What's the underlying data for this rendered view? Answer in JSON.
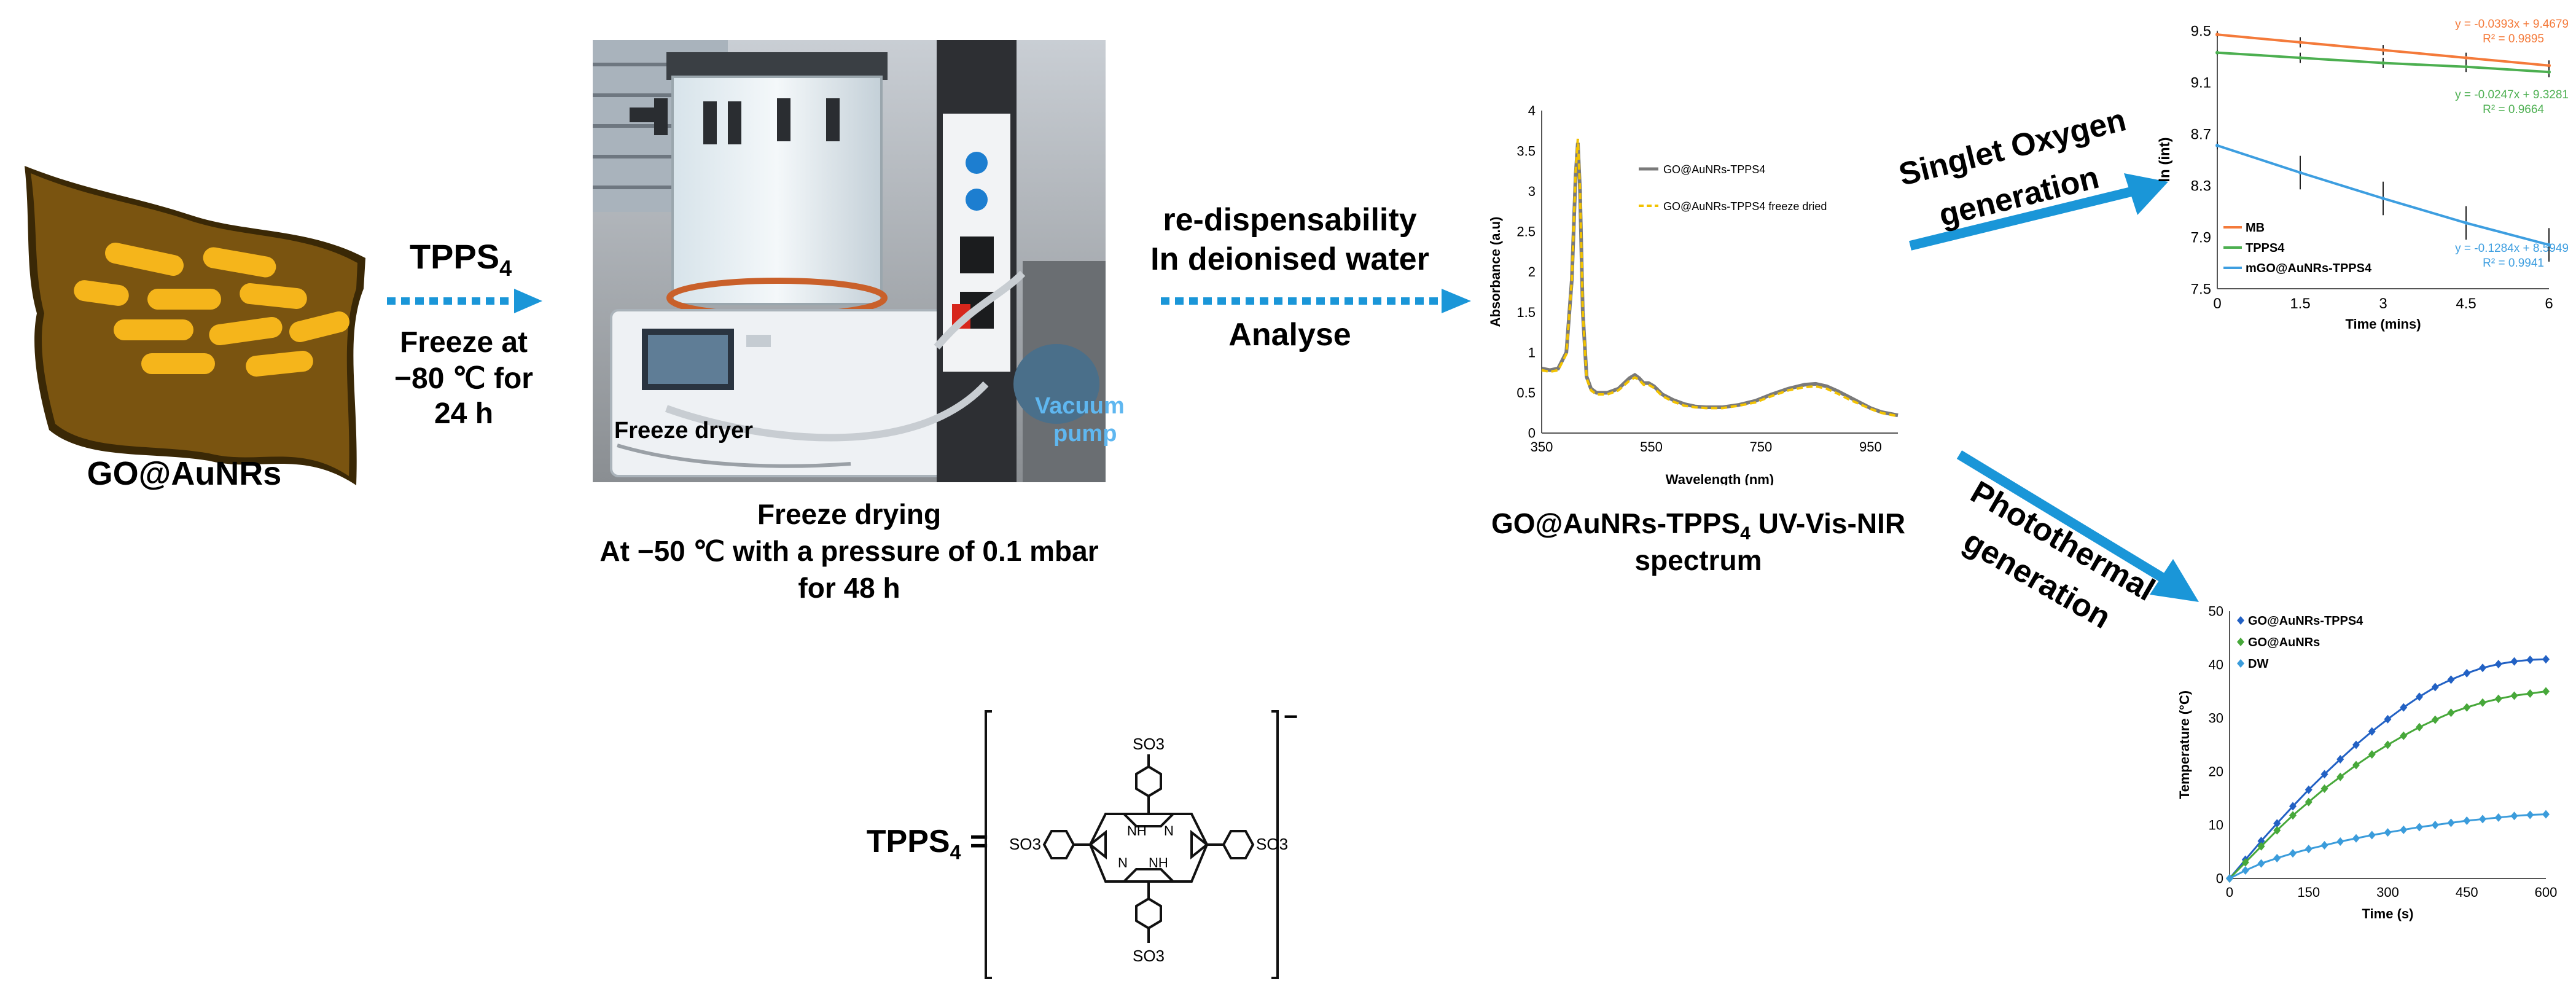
{
  "material": {
    "label": "GO@AuNRs"
  },
  "step1": {
    "reagent_main": "TPPS",
    "reagent_sub": "4",
    "line1": "Freeze at",
    "line2": "−80 ℃ for",
    "line3": "24 h"
  },
  "freeze_photo": {
    "dryer_label": "Freeze dryer",
    "pump_line1": "Vacuum",
    "pump_line2": "pump"
  },
  "freeze_drying": {
    "line1": "Freeze drying",
    "line2": "At −50 ℃ with a pressure of 0.1 mbar",
    "line3": "for 48 h"
  },
  "step2": {
    "line1": "re-dispensability",
    "line2": "In deionised water",
    "line3": "Analyse"
  },
  "spectrum_caption": {
    "pre": "GO@AuNRs-TPPS",
    "sub": "4",
    "post": " UV-Vis-NIR",
    "line2": "spectrum"
  },
  "branch_singlet": {
    "line1": "Singlet Oxygen",
    "line2": "generation"
  },
  "branch_photo": {
    "line1": "Photothermal",
    "line2": "generation"
  },
  "tpps_structure": {
    "lhs_main": "TPPS",
    "lhs_sub": "4",
    "eq": "=",
    "charge": "−",
    "so3_top": "SO3",
    "so3_bottom": "SO3",
    "so3_left": "SO3",
    "so3_right": "SO3",
    "nh_top": "NH",
    "n_top": "N",
    "n_bottom": "N",
    "nh_bottom": "NH"
  },
  "colors": {
    "arrow": "#1a96d8",
    "go_sheet": "#7a5410",
    "go_sheet_dark": "#3a2806",
    "rods": "#f5b51b",
    "nanorod_outline": "#e39b00",
    "uv_line": "#7a7a7a",
    "uv_dashed": "#f2c200",
    "mb": "#f47a3a",
    "tpps4_green": "#4caf50",
    "mgo_blue": "#3d9ee0",
    "pt_dark_blue": "#2261c4",
    "pt_green": "#47a83a",
    "pt_light_blue": "#3b9cdb"
  },
  "chart_data": [
    {
      "type": "line",
      "xlabel": "Wavelength (nm)",
      "ylabel": "Absorbance (a.u)",
      "xlim": [
        350,
        1000
      ],
      "ylim": [
        0,
        4
      ],
      "xticks": [
        "350",
        "550",
        "750",
        "950"
      ],
      "yticks": [
        "0",
        "0.5",
        "1",
        "1.5",
        "2",
        "2.5",
        "3",
        "3.5",
        "4"
      ],
      "legend_position": "top-right",
      "series": [
        {
          "name": "GO@AuNRs-TPPS4",
          "style": "solid",
          "x": [
            350,
            365,
            380,
            395,
            405,
            412,
            416,
            420,
            425,
            432,
            440,
            450,
            470,
            490,
            510,
            520,
            528,
            536,
            545,
            555,
            570,
            590,
            610,
            630,
            650,
            680,
            710,
            740,
            770,
            800,
            830,
            850,
            870,
            890,
            910,
            930,
            950,
            970,
            1000
          ],
          "y": [
            0.8,
            0.78,
            0.8,
            1.0,
            1.9,
            3.2,
            3.6,
            3.0,
            1.5,
            0.7,
            0.55,
            0.5,
            0.5,
            0.55,
            0.68,
            0.72,
            0.68,
            0.62,
            0.62,
            0.58,
            0.48,
            0.41,
            0.36,
            0.33,
            0.32,
            0.32,
            0.35,
            0.4,
            0.48,
            0.55,
            0.6,
            0.61,
            0.58,
            0.52,
            0.45,
            0.38,
            0.31,
            0.26,
            0.22
          ]
        },
        {
          "name": "GO@AuNRs-TPPS4 freeze dried",
          "style": "dashed",
          "x": [
            350,
            365,
            380,
            395,
            405,
            412,
            416,
            420,
            425,
            432,
            440,
            450,
            470,
            490,
            510,
            520,
            528,
            536,
            545,
            555,
            570,
            590,
            610,
            630,
            650,
            680,
            710,
            740,
            770,
            800,
            830,
            850,
            870,
            890,
            910,
            930,
            950,
            970,
            1000
          ],
          "y": [
            0.78,
            0.76,
            0.78,
            0.98,
            1.9,
            3.25,
            3.65,
            3.0,
            1.5,
            0.68,
            0.53,
            0.48,
            0.48,
            0.53,
            0.65,
            0.69,
            0.66,
            0.6,
            0.6,
            0.56,
            0.46,
            0.39,
            0.34,
            0.32,
            0.31,
            0.31,
            0.34,
            0.38,
            0.46,
            0.53,
            0.57,
            0.58,
            0.55,
            0.49,
            0.42,
            0.36,
            0.3,
            0.25,
            0.21
          ]
        }
      ]
    },
    {
      "type": "scatter",
      "xlabel": "Time (mins)",
      "ylabel": "ln (int)",
      "xlim": [
        0,
        6
      ],
      "ylim": [
        7.5,
        9.5
      ],
      "xticks": [
        "0",
        "1.5",
        "3",
        "4.5",
        "6"
      ],
      "yticks": [
        "7.5",
        "7.9",
        "8.3",
        "8.7",
        "9.1",
        "9.5"
      ],
      "legend_position": "bottom-left",
      "series": [
        {
          "name": "MB",
          "x": [
            0,
            1.5,
            3,
            4.5,
            6
          ],
          "y": [
            9.47,
            9.41,
            9.35,
            9.29,
            9.23
          ],
          "error": [
            0.02,
            0.04,
            0.04,
            0.04,
            0.04
          ],
          "equation": "y = -0.0393x + 9.4679",
          "r2": "R² = 0.9895"
        },
        {
          "name": "TPPS4",
          "x": [
            0,
            1.5,
            3,
            4.5,
            6
          ],
          "y": [
            9.33,
            9.29,
            9.25,
            9.22,
            9.18
          ],
          "error": [
            0.02,
            0.04,
            0.04,
            0.04,
            0.04
          ],
          "equation": "y = -0.0247x + 9.3281",
          "r2": "R² = 0.9664"
        },
        {
          "name": "mGO@AuNRs-TPPS4",
          "x": [
            0,
            1.5,
            3,
            4.5,
            6
          ],
          "y": [
            8.61,
            8.4,
            8.2,
            8.01,
            7.84
          ],
          "error": [
            0.03,
            0.13,
            0.13,
            0.13,
            0.13
          ],
          "equation": "y = -0.1284x + 8.5949",
          "r2": "R² = 0.9941"
        }
      ]
    },
    {
      "type": "line",
      "xlabel": "Time (s)",
      "ylabel": "Temperature (°C)",
      "xlim": [
        0,
        600
      ],
      "ylim": [
        0,
        50
      ],
      "xticks": [
        "0",
        "150",
        "300",
        "450",
        "600"
      ],
      "yticks": [
        "0",
        "10",
        "20",
        "30",
        "40",
        "50"
      ],
      "legend_position": "top-left",
      "series": [
        {
          "name": "GO@AuNRs-TPPS4",
          "marker": "diamond",
          "x": [
            0,
            30,
            60,
            90,
            120,
            150,
            180,
            210,
            240,
            270,
            300,
            330,
            360,
            390,
            420,
            450,
            480,
            510,
            540,
            570,
            600
          ],
          "y": [
            0,
            3.5,
            7,
            10.3,
            13.5,
            16.6,
            19.5,
            22.3,
            25,
            27.5,
            29.8,
            32,
            34,
            35.8,
            37.2,
            38.4,
            39.4,
            40.1,
            40.6,
            40.9,
            41
          ]
        },
        {
          "name": "GO@AuNRs",
          "marker": "diamond",
          "x": [
            0,
            30,
            60,
            90,
            120,
            150,
            180,
            210,
            240,
            270,
            300,
            330,
            360,
            390,
            420,
            450,
            480,
            510,
            540,
            570,
            600
          ],
          "y": [
            0,
            3,
            6,
            9,
            11.8,
            14.3,
            16.8,
            19,
            21.2,
            23.2,
            25,
            26.7,
            28.3,
            29.7,
            31,
            32,
            32.9,
            33.6,
            34.2,
            34.6,
            35
          ]
        },
        {
          "name": "DW",
          "marker": "diamond",
          "x": [
            0,
            30,
            60,
            90,
            120,
            150,
            180,
            210,
            240,
            270,
            300,
            330,
            360,
            390,
            420,
            450,
            480,
            510,
            540,
            570,
            600
          ],
          "y": [
            0,
            1.5,
            2.8,
            3.8,
            4.7,
            5.5,
            6.2,
            6.9,
            7.5,
            8.1,
            8.6,
            9.1,
            9.6,
            10,
            10.4,
            10.8,
            11.1,
            11.4,
            11.7,
            11.9,
            12
          ]
        }
      ]
    }
  ]
}
